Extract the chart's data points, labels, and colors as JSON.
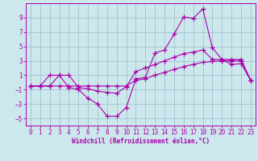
{
  "xlabel": "Windchill (Refroidissement éolien,°C)",
  "bg_color": "#cce8ec",
  "line_color": "#aa00aa",
  "grid_color": "#99bbcc",
  "x_values": [
    0,
    1,
    2,
    3,
    4,
    5,
    6,
    7,
    8,
    9,
    10,
    11,
    12,
    13,
    14,
    15,
    16,
    17,
    18,
    19,
    20,
    21,
    22,
    23
  ],
  "line1": [
    -0.5,
    -0.5,
    1.0,
    1.0,
    -0.7,
    -1.0,
    -2.2,
    -3.0,
    -4.7,
    -4.7,
    -3.5,
    0.5,
    0.7,
    4.1,
    4.5,
    6.7,
    9.1,
    8.9,
    10.2,
    4.8,
    3.2,
    2.5,
    2.6,
    0.3
  ],
  "line2": [
    -0.5,
    -0.5,
    -0.5,
    1.0,
    1.0,
    -0.7,
    -0.9,
    -1.2,
    -1.4,
    -1.5,
    -0.6,
    1.5,
    2.0,
    2.5,
    3.0,
    3.5,
    4.0,
    4.2,
    4.5,
    3.2,
    3.2,
    3.2,
    3.2,
    0.3
  ],
  "line3": [
    -0.5,
    -0.5,
    -0.5,
    -0.5,
    -0.5,
    -0.5,
    -0.5,
    -0.5,
    -0.5,
    -0.5,
    -0.5,
    0.3,
    0.5,
    1.0,
    1.4,
    1.8,
    2.2,
    2.5,
    2.8,
    2.9,
    3.0,
    3.0,
    3.0,
    0.3
  ],
  "ylim": [
    -6,
    11
  ],
  "xlim": [
    -0.5,
    23.5
  ],
  "yticks": [
    -5,
    -3,
    -1,
    1,
    3,
    5,
    7,
    9
  ],
  "xticks": [
    0,
    1,
    2,
    3,
    4,
    5,
    6,
    7,
    8,
    9,
    10,
    11,
    12,
    13,
    14,
    15,
    16,
    17,
    18,
    19,
    20,
    21,
    22,
    23
  ],
  "xlabel_fontsize": 5.5,
  "tick_fontsize": 5.5,
  "linewidth": 0.8,
  "markersize": 4
}
